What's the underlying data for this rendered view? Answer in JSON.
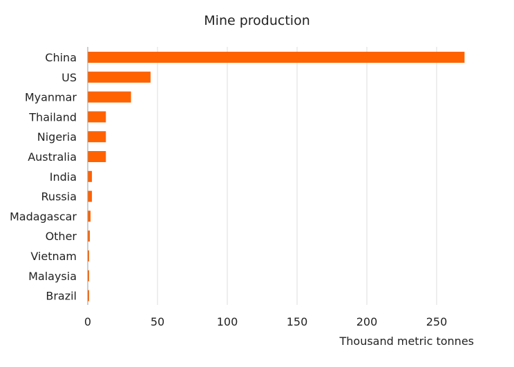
{
  "chart_data": {
    "type": "bar",
    "orientation": "horizontal",
    "title": "Mine production",
    "xlabel": "Thousand metric tonnes",
    "ylabel": "",
    "categories": [
      "China",
      "US",
      "Myanmar",
      "Thailand",
      "Nigeria",
      "Australia",
      "India",
      "Russia",
      "Madagascar",
      "Other",
      "Vietnam",
      "Malaysia",
      "Brazil"
    ],
    "values": [
      270,
      45,
      31,
      13,
      13,
      13,
      3,
      3,
      2,
      1.5,
      1,
      1,
      1
    ],
    "xlim": [
      0,
      290
    ],
    "xticks": [
      0,
      50,
      100,
      150,
      200,
      250
    ],
    "grid": "vertical",
    "legend": "none",
    "color": "#ff6200"
  }
}
